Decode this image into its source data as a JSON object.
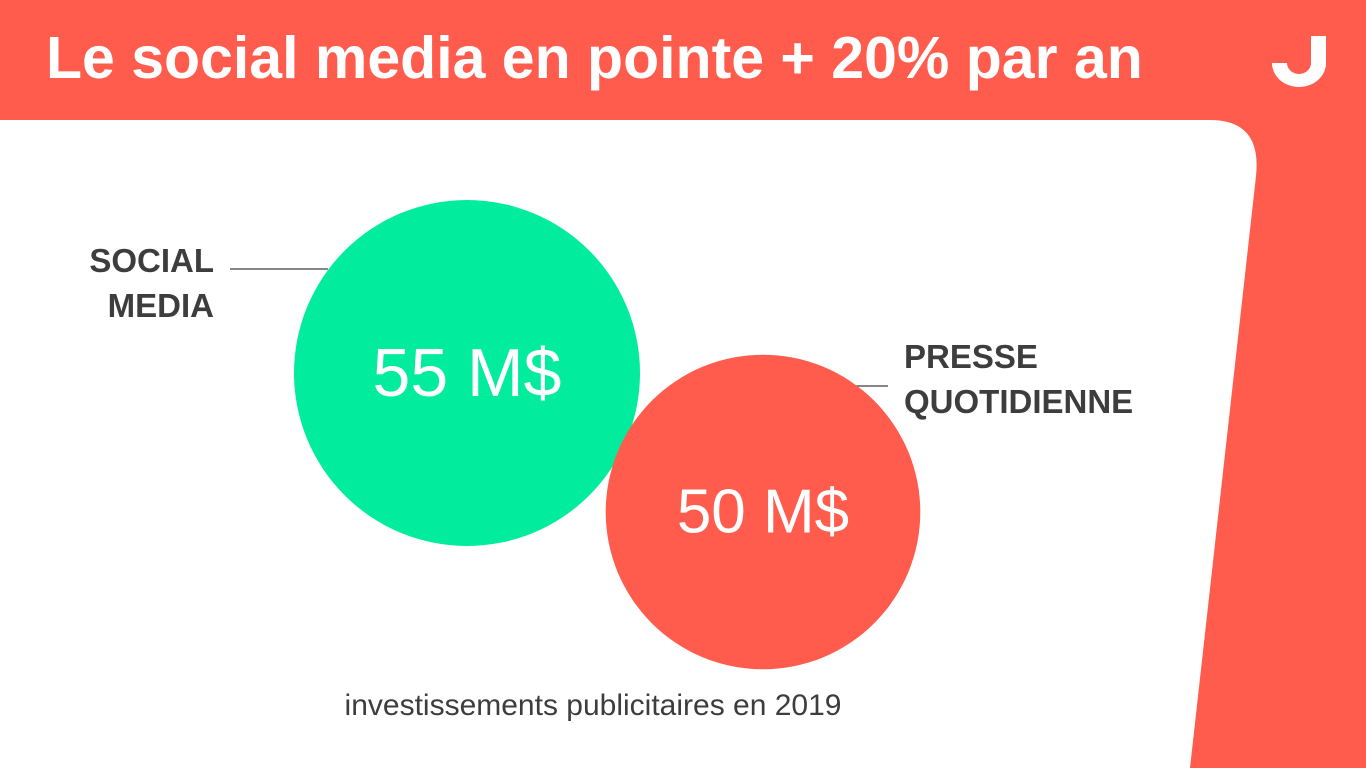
{
  "header": {
    "title": "Le social media en pointe + 20% par an",
    "logo_icon": "brand-logo-icon"
  },
  "colors": {
    "accent": "#ff5c4d",
    "social": "#02ec9d",
    "text_dark": "#3d3d3d",
    "background": "#ffffff"
  },
  "chart_data": {
    "type": "bubble",
    "unit": "M$",
    "items": [
      {
        "label_lines": [
          "SOCIAL",
          "MEDIA"
        ],
        "value": 55,
        "value_label": "55 M$",
        "color": "#02ec9d",
        "label_side": "left"
      },
      {
        "label_lines": [
          "PRESSE",
          "QUOTIDIENNE"
        ],
        "value": 50,
        "value_label": "50 M$",
        "color": "#ff5c4d",
        "label_side": "right"
      }
    ],
    "caption": "investissements publicitaires en 2019"
  }
}
